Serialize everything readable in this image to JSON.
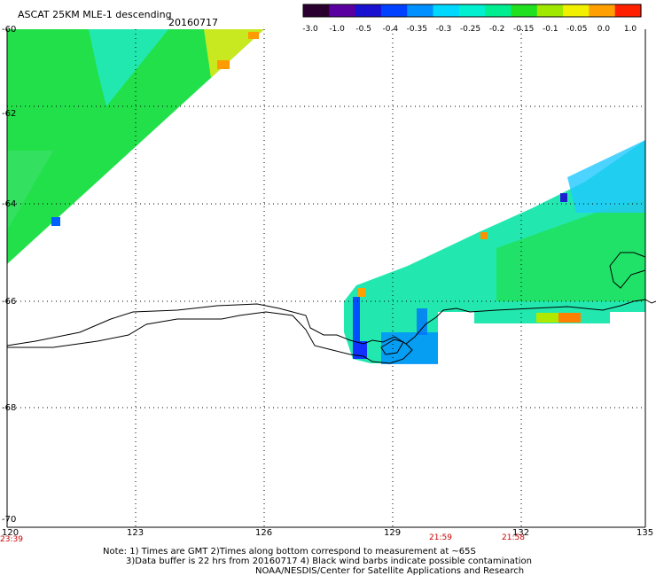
{
  "header": {
    "title": "ASCAT 25KM MLE-1 descending",
    "date": "20160717"
  },
  "colorbar": {
    "tick_labels": [
      "-3.0",
      "-1.0",
      "-0.5",
      "-0.4",
      "-0.35",
      "-0.3",
      "-0.25",
      "-0.2",
      "-0.15",
      "-0.1",
      "-0.05",
      "0.0",
      "1.0"
    ],
    "colors": [
      "#2a0030",
      "#5a00a0",
      "#1a10d0",
      "#0040ff",
      "#0090ff",
      "#00d8ff",
      "#00f0d0",
      "#00ee90",
      "#20e020",
      "#a0e800",
      "#f0f000",
      "#ffa000",
      "#ff2000"
    ]
  },
  "axes": {
    "lat_labels": [
      "-60",
      "-62",
      "-64",
      "-66",
      "-68",
      "-70"
    ],
    "lon_labels": [
      "120",
      "123",
      "126",
      "129",
      "132",
      "135"
    ],
    "times": [
      "23:39",
      "21:59",
      "21:58"
    ]
  },
  "notes": {
    "line1": "Note: 1) Times are GMT 2)Times along bottom correspond to measurement at ~65S",
    "line2": "3)Data buffer is 22 hrs from 20160717 4) Black wind barbs indicate possible contamination",
    "line3": "NOAA/NESDIS/Center for Satellite Applications and Research"
  }
}
